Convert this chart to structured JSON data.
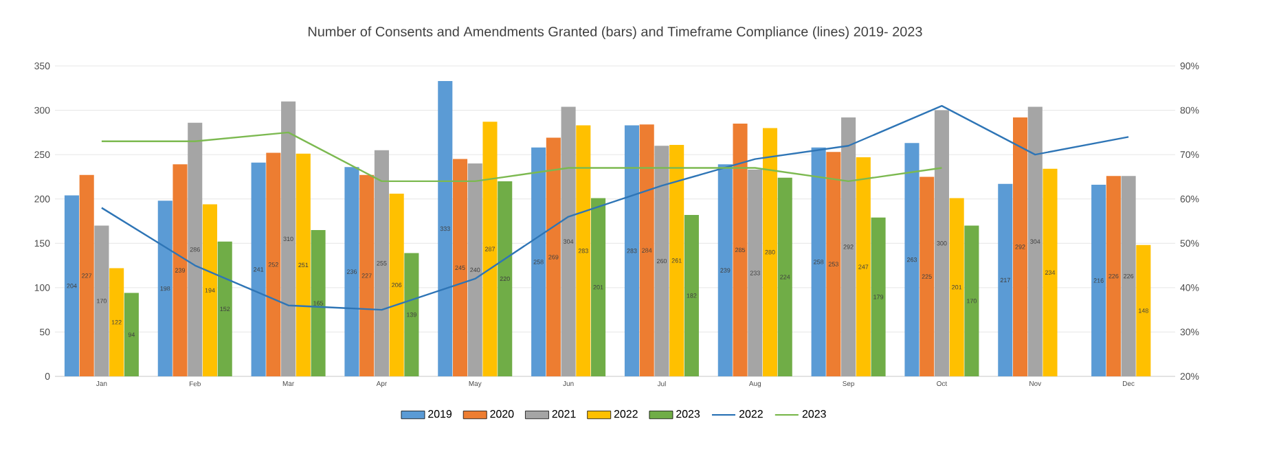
{
  "chart_data": {
    "type": "bar",
    "title": "Number of Consents and Amendments Granted (bars) and Timeframe Compliance (lines) 2019- 2023",
    "categories": [
      "Jan",
      "Feb",
      "Mar",
      "Apr",
      "May",
      "Jun",
      "Jul",
      "Aug",
      "Sep",
      "Oct",
      "Nov",
      "Dec"
    ],
    "series": [
      {
        "name": "2019",
        "color": "#5b9bd5",
        "values": [
          204,
          198,
          241,
          236,
          333,
          258,
          283,
          239,
          258,
          263,
          217,
          216
        ],
        "value_labels": [
          "204",
          "198",
          "241",
          "236",
          "333",
          "258",
          "283",
          "239",
          "258",
          "263",
          "217",
          "216"
        ]
      },
      {
        "name": "2020",
        "color": "#ed7d31",
        "values": [
          227,
          239,
          252,
          227,
          245,
          269,
          284,
          285,
          253,
          225,
          292,
          226
        ],
        "value_labels": [
          "227",
          "239",
          "252",
          "227",
          "245",
          "269",
          "284",
          "285",
          "253",
          "225",
          "292",
          "226"
        ]
      },
      {
        "name": "2021",
        "color": "#a5a5a5",
        "values": [
          170,
          286,
          310,
          255,
          240,
          304,
          260,
          233,
          292,
          300,
          304,
          226
        ],
        "value_labels": [
          "170",
          "286",
          "310",
          "255",
          "240",
          "304",
          "260",
          "233",
          "292",
          "300",
          "304",
          "226"
        ]
      },
      {
        "name": "2022",
        "color": "#ffc000",
        "values": [
          122,
          194,
          251,
          206,
          287,
          283,
          261,
          280,
          247,
          201,
          234,
          148
        ],
        "value_labels": [
          "122",
          "194",
          "251",
          "206",
          "287",
          "283",
          "261",
          "280",
          "247",
          "201",
          "234",
          "148"
        ]
      },
      {
        "name": "2023",
        "color": "#70ad47",
        "values": [
          94,
          152,
          165,
          139,
          220,
          201,
          182,
          224,
          179,
          170,
          null,
          null
        ],
        "value_labels": [
          "94",
          "152",
          "165",
          "139",
          "220",
          "201",
          "182",
          "224",
          "179",
          "170",
          null,
          null
        ]
      },
      {
        "name": "2022",
        "type": "line",
        "axis": "y2",
        "color": "#2e75b6",
        "values": [
          58,
          45,
          36,
          35,
          42,
          56,
          63,
          69,
          72,
          81,
          70,
          74
        ]
      },
      {
        "name": "2023",
        "type": "line",
        "axis": "y2",
        "color": "#7cb950",
        "values": [
          73,
          73,
          75,
          64,
          64,
          67,
          67,
          67,
          64,
          67,
          null,
          null
        ]
      }
    ],
    "ylim": [
      0,
      350
    ],
    "yticks": [
      0,
      50,
      100,
      150,
      200,
      250,
      300,
      350
    ],
    "y2lim": [
      20,
      90
    ],
    "y2ticks": [
      {
        "value": 20,
        "label": "20%"
      },
      {
        "value": 30,
        "label": "30%"
      },
      {
        "value": 40,
        "label": "40%"
      },
      {
        "value": 50,
        "label": "50%"
      },
      {
        "value": 60,
        "label": "60%"
      },
      {
        "value": 70,
        "label": "70%"
      },
      {
        "value": 80,
        "label": "80%"
      },
      {
        "value": 90,
        "label": "90%"
      }
    ],
    "grid": "y",
    "legend": "bottom"
  }
}
